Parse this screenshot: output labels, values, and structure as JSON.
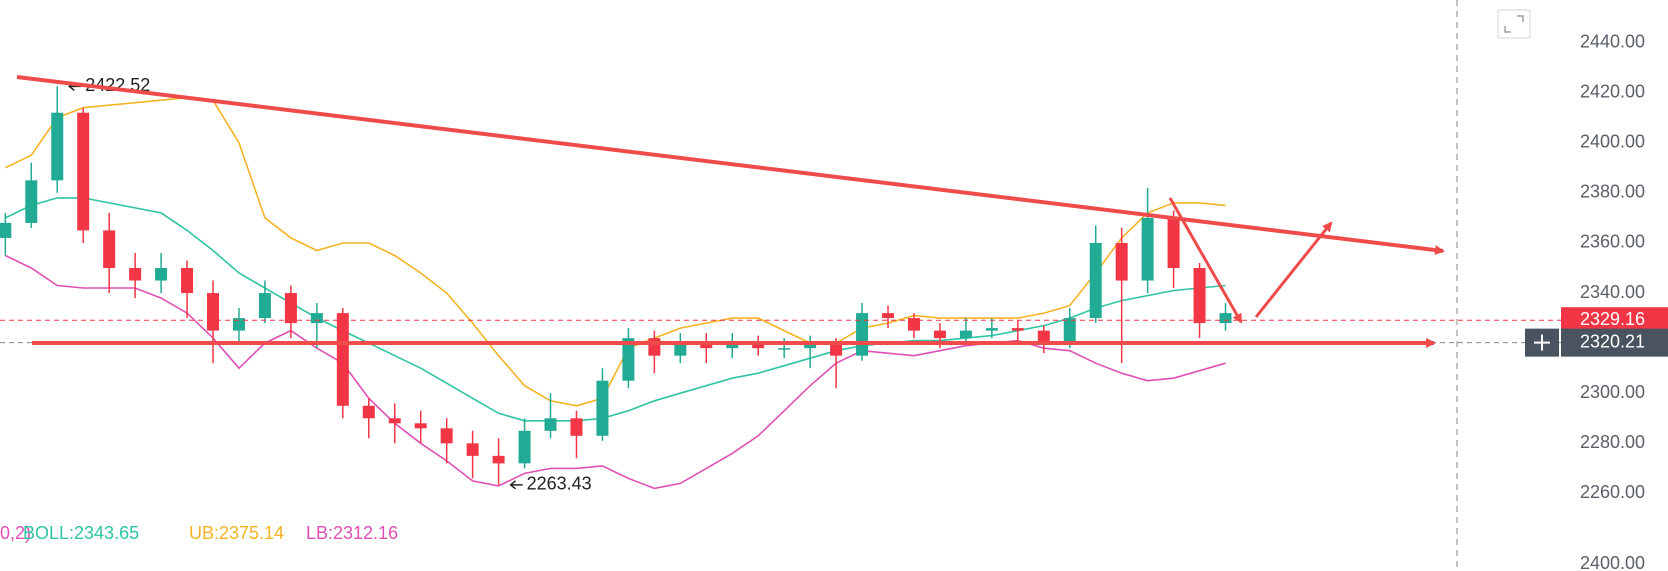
{
  "chart_data": {
    "type": "candlestick",
    "open": [
      2362,
      2368,
      2385,
      2412,
      2365,
      2350,
      2345,
      2350,
      2340,
      2325,
      2330,
      2340,
      2328,
      2332,
      2295,
      2290,
      2288,
      2286,
      2280,
      2275,
      2272,
      2285,
      2290,
      2283,
      2305,
      2322,
      2315,
      2320,
      2318,
      2320,
      2318,
      2318,
      2320,
      2315,
      2332,
      2330,
      2325,
      2322,
      2325,
      2326,
      2325,
      2320,
      2330,
      2360,
      2345,
      2370,
      2350,
      2328
    ],
    "high": [
      2372,
      2392,
      2422.52,
      2414,
      2372,
      2356,
      2356,
      2353,
      2345,
      2334,
      2345,
      2343,
      2336,
      2334,
      2298,
      2296,
      2293,
      2290,
      2285,
      2282,
      2290,
      2300,
      2293,
      2310,
      2326,
      2325,
      2324,
      2324,
      2324,
      2323,
      2322,
      2323,
      2322,
      2336,
      2335,
      2332,
      2328,
      2330,
      2330,
      2329,
      2327,
      2334,
      2367,
      2366,
      2382,
      2373,
      2352,
      2336
    ],
    "low": [
      2355,
      2366,
      2380,
      2360,
      2340,
      2338,
      2340,
      2330,
      2312,
      2320,
      2328,
      2322,
      2318,
      2290,
      2282,
      2280,
      2280,
      2272,
      2266,
      2263.43,
      2270,
      2282,
      2274,
      2281,
      2302,
      2308,
      2312,
      2312,
      2314,
      2315,
      2314,
      2310,
      2302,
      2313,
      2326,
      2322,
      2318,
      2320,
      2322,
      2320,
      2316,
      2318,
      2328,
      2312,
      2340,
      2342,
      2322,
      2325
    ],
    "close": [
      2368,
      2385,
      2412,
      2365,
      2350,
      2345,
      2350,
      2340,
      2325,
      2330,
      2340,
      2328,
      2332,
      2295,
      2290,
      2288,
      2286,
      2280,
      2275,
      2272,
      2285,
      2290,
      2283,
      2305,
      2322,
      2315,
      2320,
      2318,
      2320,
      2318,
      2318,
      2320,
      2315,
      2332,
      2330,
      2325,
      2322,
      2325,
      2326,
      2325,
      2320,
      2330,
      2360,
      2345,
      2370,
      2350,
      2328,
      2332
    ],
    "up_color": "#22ab94",
    "down_color": "#f23645",
    "series": [
      {
        "name": "BOLL:2343.65",
        "color": "#2fc4a3",
        "values": [
          2370,
          2375,
          2378,
          2378,
          2376,
          2374,
          2372,
          2365,
          2357,
          2348,
          2342,
          2336,
          2330,
          2325,
          2320,
          2315,
          2310,
          2304,
          2298,
          2292,
          2289,
          2289,
          2289,
          2290,
          2293,
          2297,
          2300,
          2303,
          2306,
          2308,
          2311,
          2314,
          2317,
          2319,
          2320,
          2321,
          2321,
          2322,
          2323,
          2325,
          2327,
          2330,
          2334,
          2337,
          2339,
          2341,
          2342,
          2343
        ]
      },
      {
        "name": "UB:2375.14",
        "color": "#f5b324",
        "values": [
          2390,
          2395,
          2410,
          2414,
          2415,
          2416,
          2417,
          2418,
          2417,
          2400,
          2370,
          2362,
          2357,
          2360,
          2360,
          2355,
          2348,
          2340,
          2328,
          2315,
          2303,
          2297,
          2295,
          2298,
          2318,
          2322,
          2326,
          2328,
          2330,
          2330,
          2325,
          2320,
          2320,
          2326,
          2328,
          2331,
          2330,
          2330,
          2330,
          2330,
          2332,
          2335,
          2348,
          2362,
          2372,
          2376,
          2376,
          2375
        ]
      },
      {
        "name": "LB:2312.16",
        "color": "#e04fb5",
        "values": [
          2355,
          2350,
          2343,
          2342,
          2342,
          2342,
          2338,
          2332,
          2322,
          2310,
          2320,
          2325,
          2318,
          2312,
          2298,
          2288,
          2280,
          2273,
          2265,
          2263,
          2268,
          2270,
          2270,
          2271,
          2266,
          2262,
          2264,
          2270,
          2276,
          2283,
          2293,
          2303,
          2312,
          2317,
          2316,
          2315,
          2317,
          2319,
          2320,
          2321,
          2318,
          2317,
          2312,
          2308,
          2305,
          2306,
          2309,
          2312
        ]
      }
    ],
    "indicator_params": "0,2)",
    "ylim": [
      2245,
      2457
    ],
    "yticks": [
      {
        "value": 2440,
        "label": "2440.00"
      },
      {
        "value": 2420,
        "label": "2420.00"
      },
      {
        "value": 2400,
        "label": "2400.00"
      },
      {
        "value": 2380,
        "label": "2380.00"
      },
      {
        "value": 2360,
        "label": "2360.00"
      },
      {
        "value": 2340,
        "label": "2340.00"
      },
      {
        "value": 2300,
        "label": "2300.00"
      },
      {
        "value": 2280,
        "label": "2280.00"
      },
      {
        "value": 2260,
        "label": "2260.00"
      }
    ],
    "last_price": 2329.16,
    "crosshair_price": 2320.21,
    "high_label": 2422.52,
    "low_label": 2263.43,
    "lower_pane_tick": {
      "value": 2400,
      "label": "2400.00"
    }
  }
}
